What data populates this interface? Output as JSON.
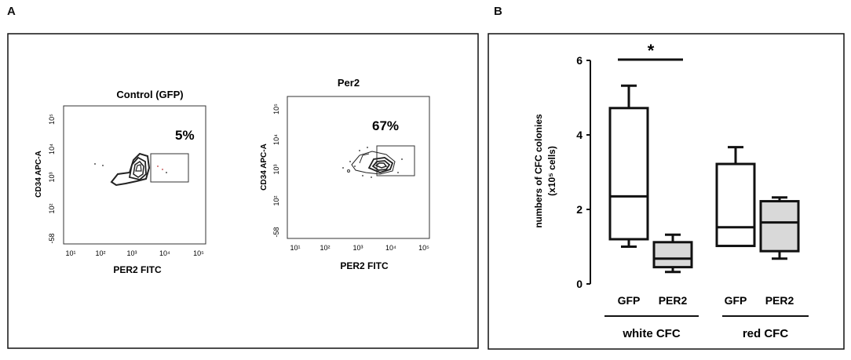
{
  "panels": {
    "a_label": "A",
    "b_label": "B"
  },
  "flow_plots": [
    {
      "title": "Control (GFP)",
      "percent": "5%",
      "ylabel": "CD34 APC-A",
      "xlabel": "PER2 FITC",
      "x_ticks": [
        "10¹",
        "10²",
        "10³",
        "10⁴",
        "10⁵"
      ],
      "y_ticks": [
        "10⁵",
        "10⁴",
        "10³",
        "10²",
        "-58"
      ]
    },
    {
      "title": "Per2",
      "percent": "67%",
      "ylabel": "CD34 APC-A",
      "xlabel": "PER2 FITC",
      "x_ticks": [
        "10¹",
        "10²",
        "10³",
        "10⁴",
        "10⁵"
      ],
      "y_ticks": [
        "10⁵",
        "10⁴",
        "10³",
        "10²",
        "-58"
      ]
    }
  ],
  "chart_data": {
    "type": "box",
    "ylabel_main": "numbers of CFC colonies",
    "ylabel_unit": "(x10⁵ cells)",
    "ylim": [
      0,
      6
    ],
    "yticks": [
      "0",
      "2",
      "4",
      "6"
    ],
    "categories": [
      "GFP",
      "PER2",
      "GFP",
      "PER2"
    ],
    "groups": [
      {
        "label": "white CFC",
        "members": [
          0,
          1
        ]
      },
      {
        "label": "red CFC",
        "members": [
          2,
          3
        ]
      }
    ],
    "boxes": [
      {
        "category": "GFP",
        "fill": "#ffffff",
        "min": 1.0,
        "q1": 1.2,
        "median": 2.35,
        "q3": 4.72,
        "max": 5.32
      },
      {
        "category": "PER2",
        "fill": "#d9d9d9",
        "min": 0.32,
        "q1": 0.45,
        "median": 0.68,
        "q3": 1.12,
        "max": 1.32
      },
      {
        "category": "GFP",
        "fill": "#ffffff",
        "min": 1.02,
        "q1": 1.02,
        "median": 1.52,
        "q3": 3.22,
        "max": 3.67
      },
      {
        "category": "PER2",
        "fill": "#d9d9d9",
        "min": 0.68,
        "q1": 0.88,
        "median": 1.65,
        "q3": 2.22,
        "max": 2.32
      }
    ],
    "significance": {
      "label": "*",
      "from": 0,
      "to": 1
    }
  }
}
